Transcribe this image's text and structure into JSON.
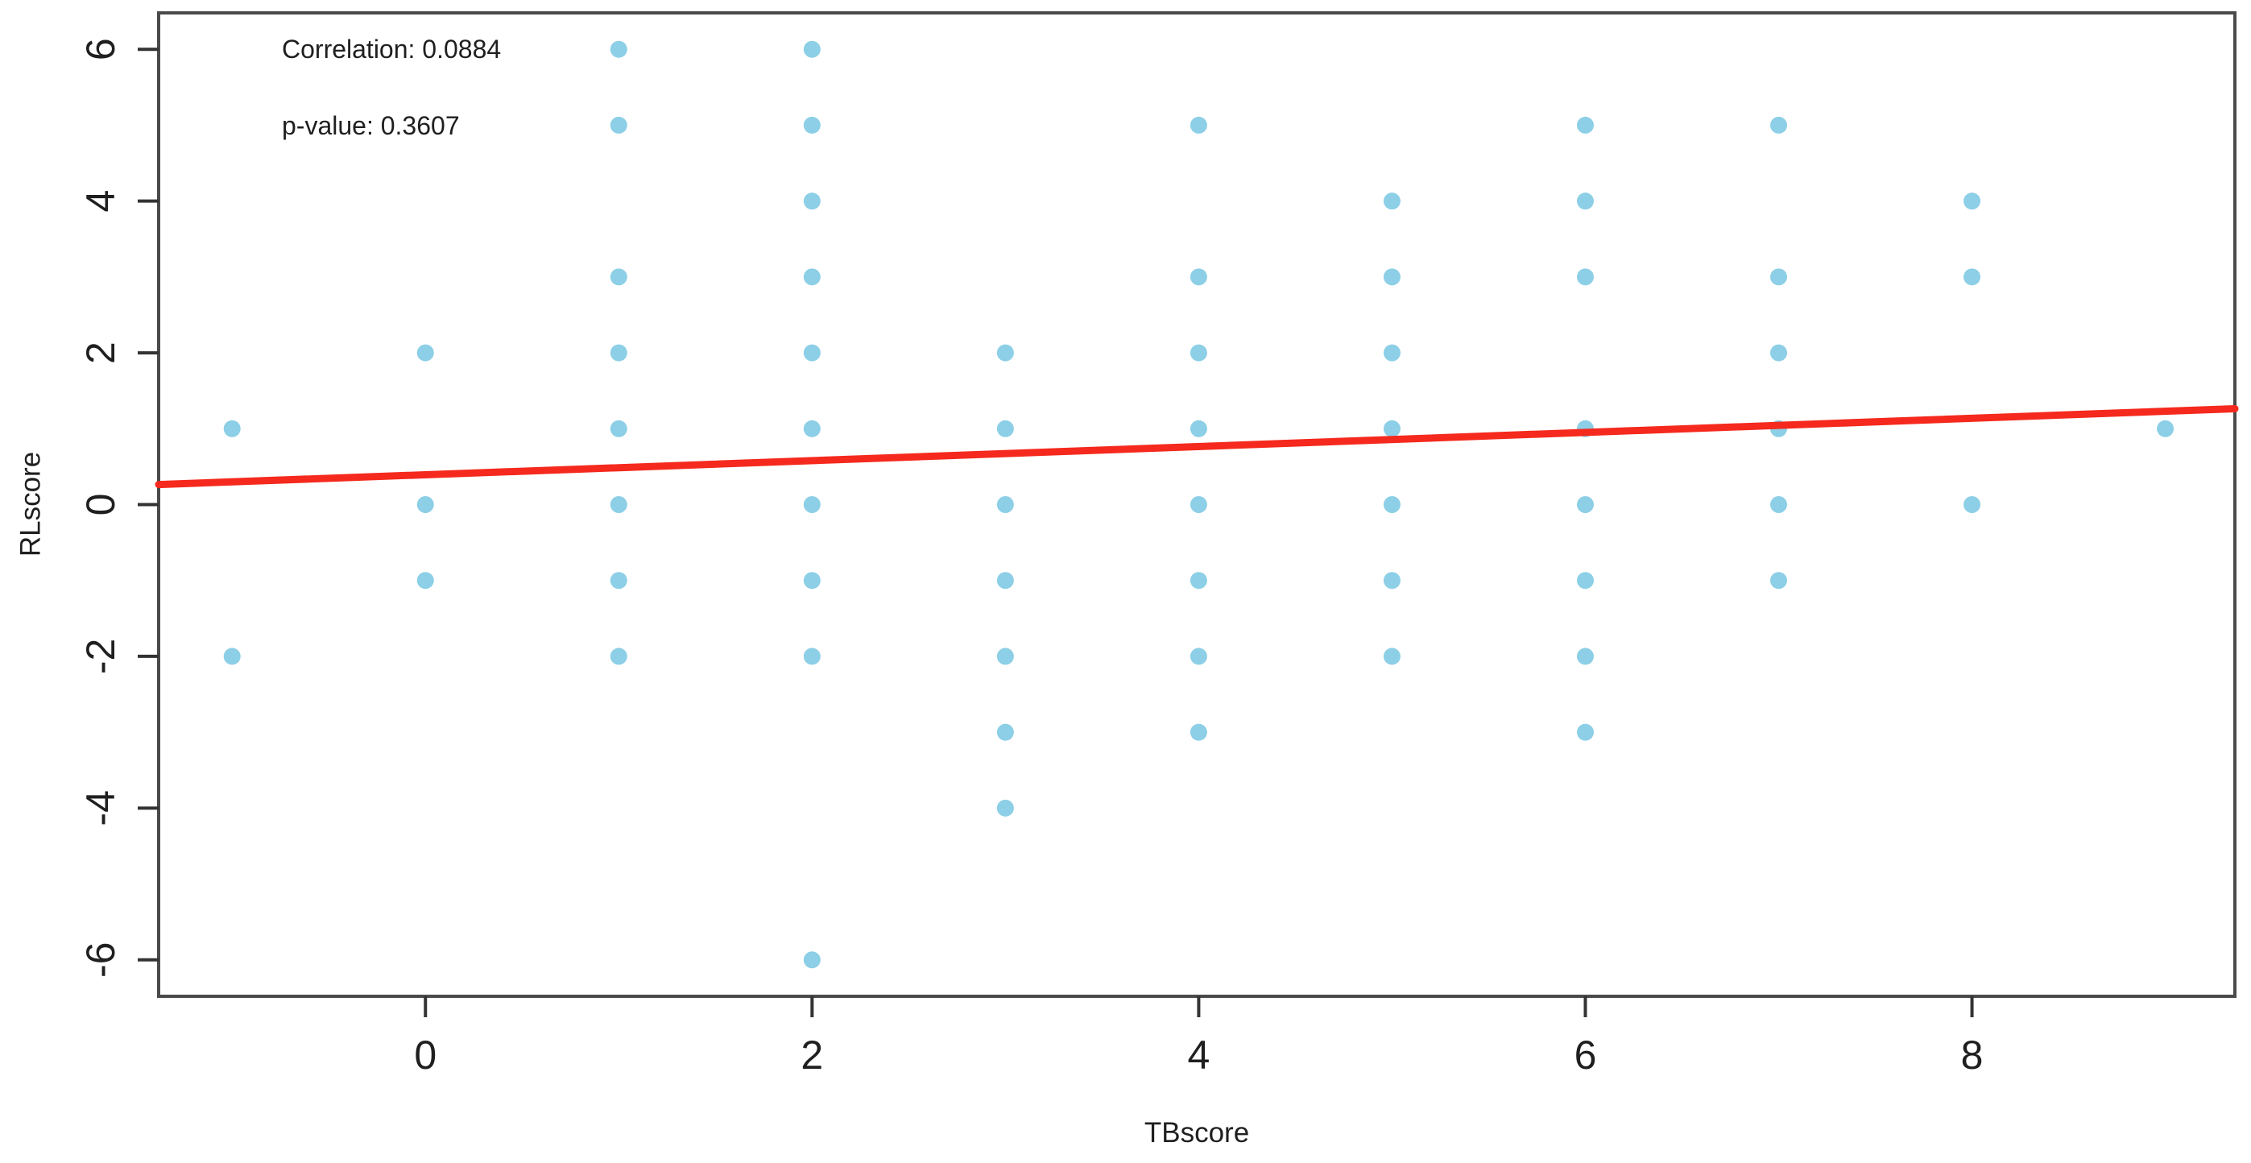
{
  "figure": {
    "background_color": "#ffffff",
    "plot_border_color": "#4a4a4a",
    "text_color": "#1f1f1f"
  },
  "chart_data": {
    "type": "scatter",
    "title": "",
    "xlabel": "TBscore",
    "ylabel": "RLscore",
    "xlim": [
      -1.38,
      9.36
    ],
    "ylim": [
      -6.48,
      6.48
    ],
    "x_ticks": [
      0,
      2,
      4,
      6,
      8
    ],
    "y_ticks": [
      -6,
      -4,
      -2,
      0,
      2,
      4,
      6
    ],
    "grid": false,
    "legend": "none",
    "point_color": "#8CCFE6",
    "point_radius": 10.5,
    "points": [
      [
        -1,
        1
      ],
      [
        -1,
        -2
      ],
      [
        0,
        2
      ],
      [
        0,
        0
      ],
      [
        0,
        -1
      ],
      [
        1,
        6
      ],
      [
        1,
        5
      ],
      [
        1,
        3
      ],
      [
        1,
        2
      ],
      [
        1,
        1
      ],
      [
        1,
        0
      ],
      [
        1,
        -1
      ],
      [
        1,
        -2
      ],
      [
        2,
        6
      ],
      [
        2,
        5
      ],
      [
        2,
        4
      ],
      [
        2,
        3
      ],
      [
        2,
        2
      ],
      [
        2,
        1
      ],
      [
        2,
        0
      ],
      [
        2,
        -1
      ],
      [
        2,
        -2
      ],
      [
        2,
        -6
      ],
      [
        3,
        2
      ],
      [
        3,
        1
      ],
      [
        3,
        0
      ],
      [
        3,
        -1
      ],
      [
        3,
        -2
      ],
      [
        3,
        -3
      ],
      [
        3,
        -4
      ],
      [
        4,
        5
      ],
      [
        4,
        3
      ],
      [
        4,
        2
      ],
      [
        4,
        1
      ],
      [
        4,
        0
      ],
      [
        4,
        -1
      ],
      [
        4,
        -2
      ],
      [
        4,
        -3
      ],
      [
        5,
        4
      ],
      [
        5,
        3
      ],
      [
        5,
        2
      ],
      [
        5,
        1
      ],
      [
        5,
        0
      ],
      [
        5,
        -1
      ],
      [
        5,
        -2
      ],
      [
        6,
        5
      ],
      [
        6,
        4
      ],
      [
        6,
        3
      ],
      [
        6,
        1
      ],
      [
        6,
        0
      ],
      [
        6,
        -1
      ],
      [
        6,
        -2
      ],
      [
        6,
        -3
      ],
      [
        7,
        5
      ],
      [
        7,
        3
      ],
      [
        7,
        2
      ],
      [
        7,
        1
      ],
      [
        7,
        0
      ],
      [
        7,
        -1
      ],
      [
        8,
        4
      ],
      [
        8,
        3
      ],
      [
        8,
        0
      ],
      [
        9,
        1
      ]
    ],
    "trend_line": {
      "type": "linear",
      "slope": 0.093,
      "intercept": 0.393,
      "color": "#F5291D",
      "width": 9
    },
    "correlation": 0.0884,
    "p_value": 0.3607,
    "annotations": [
      {
        "label": "Correlation: 0.0884",
        "x": -0.74,
        "y": 6
      },
      {
        "label": "p-value: 0.3607",
        "x": -0.74,
        "y": 5
      }
    ]
  }
}
